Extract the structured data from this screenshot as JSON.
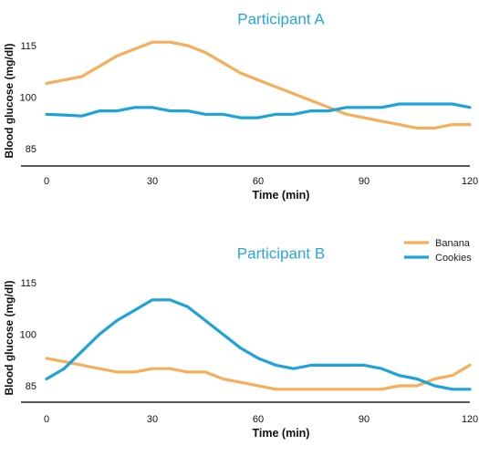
{
  "colors": {
    "Banana": "#f5ae5b",
    "Cookies": "#1ea3d9",
    "title": "#29a6dc"
  },
  "legend": {
    "placement": "right-between-panels",
    "items": [
      "Banana",
      "Cookies"
    ]
  },
  "chart_data": [
    {
      "type": "line",
      "title": "Participant A",
      "xlabel": "Time (min)",
      "ylabel": "Blood glucose (mg/dl)",
      "xlim": [
        0,
        120
      ],
      "ylim": [
        80,
        120
      ],
      "xticks": [
        0,
        30,
        60,
        90,
        120
      ],
      "yticks": [
        85,
        100,
        115
      ],
      "grid": false,
      "series": [
        {
          "name": "Banana",
          "x": [
            0,
            5,
            10,
            15,
            20,
            25,
            30,
            35,
            40,
            45,
            50,
            55,
            60,
            65,
            70,
            75,
            80,
            85,
            90,
            95,
            100,
            105,
            110,
            115,
            120
          ],
          "y": [
            104,
            105,
            106,
            109,
            112,
            114,
            116,
            116,
            115,
            113,
            110,
            107,
            105,
            103,
            101,
            99,
            97,
            95,
            94,
            93,
            92,
            91,
            91,
            92,
            92
          ]
        },
        {
          "name": "Cookies",
          "x": [
            0,
            5,
            10,
            15,
            20,
            25,
            30,
            35,
            40,
            45,
            50,
            55,
            60,
            65,
            70,
            75,
            80,
            85,
            90,
            95,
            100,
            105,
            110,
            115,
            120
          ],
          "y": [
            95,
            94.8,
            94.5,
            96,
            96,
            97,
            97,
            96,
            96,
            95,
            95,
            94,
            94,
            95,
            95,
            96,
            96,
            97,
            97,
            97,
            98,
            98,
            98,
            98,
            97
          ]
        }
      ]
    },
    {
      "type": "line",
      "title": "Participant B",
      "xlabel": "Time (min)",
      "ylabel": "Blood glucose (mg/dl)",
      "xlim": [
        0,
        120
      ],
      "ylim": [
        80,
        120
      ],
      "xticks": [
        0,
        30,
        60,
        90,
        120
      ],
      "yticks": [
        85,
        100,
        115
      ],
      "grid": false,
      "series": [
        {
          "name": "Banana",
          "x": [
            0,
            5,
            10,
            15,
            20,
            25,
            30,
            35,
            40,
            45,
            50,
            55,
            60,
            65,
            70,
            75,
            80,
            85,
            90,
            95,
            100,
            105,
            110,
            115,
            120
          ],
          "y": [
            93,
            92,
            91,
            90,
            89,
            89,
            90,
            90,
            89,
            89,
            87,
            86,
            85,
            84,
            84,
            84,
            84,
            84,
            84,
            84,
            85,
            85,
            87,
            88,
            91
          ]
        },
        {
          "name": "Cookies",
          "x": [
            0,
            5,
            10,
            15,
            20,
            25,
            30,
            35,
            40,
            45,
            50,
            55,
            60,
            65,
            70,
            75,
            80,
            85,
            90,
            95,
            100,
            105,
            110,
            115,
            120
          ],
          "y": [
            87,
            90,
            95,
            100,
            104,
            107,
            110,
            110,
            108,
            104,
            100,
            96,
            93,
            91,
            90,
            91,
            91,
            91,
            91,
            90,
            88,
            87,
            85,
            84,
            84
          ]
        }
      ]
    }
  ]
}
